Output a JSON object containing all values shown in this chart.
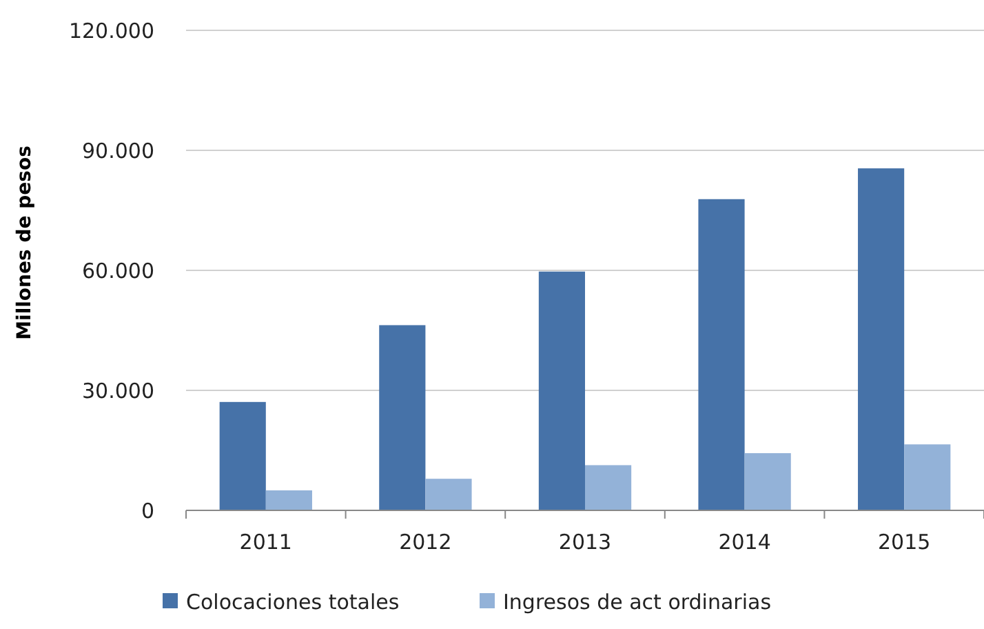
{
  "chart_data": {
    "type": "bar",
    "ylabel": "Millones de pesos",
    "categories": [
      "2011",
      "2012",
      "2013",
      "2014",
      "2015"
    ],
    "series": [
      {
        "name": "Colocaciones totales",
        "color": "#4672a8",
        "values": [
          27100,
          46300,
          59700,
          77800,
          85500
        ]
      },
      {
        "name": "Ingresos de act ordinarias",
        "color": "#93b2d8",
        "values": [
          5000,
          7900,
          11300,
          14300,
          16500
        ]
      }
    ],
    "ylim": [
      0,
      120000
    ],
    "yticks": [
      {
        "value": 0,
        "label": "0"
      },
      {
        "value": 30000,
        "label": "30.000"
      },
      {
        "value": 60000,
        "label": "60.000"
      },
      {
        "value": 90000,
        "label": "90.000"
      },
      {
        "value": 120000,
        "label": "120.000"
      }
    ],
    "grid": "y",
    "legend": "bottom"
  }
}
